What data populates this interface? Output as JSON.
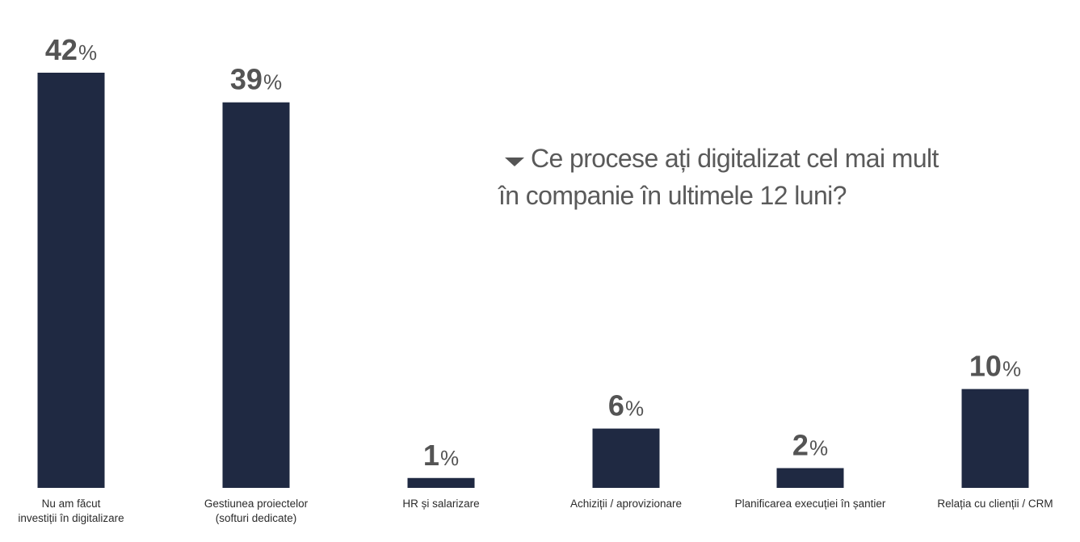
{
  "chart_data": {
    "type": "bar",
    "title_lines": [
      "Ce procese ați digitalizat cel mai mult",
      "în companie în ultimele 12 luni?"
    ],
    "categories": [
      [
        "Nu am făcut",
        "investiții în digitalizare"
      ],
      [
        "Gestiunea proiectelor",
        "(softuri dedicate)"
      ],
      [
        "HR și salarizare"
      ],
      [
        "Achiziții / aprovizionare"
      ],
      [
        "Planificarea execuției în șantier"
      ],
      [
        "Relația cu clienții / CRM"
      ]
    ],
    "values": [
      42,
      39,
      1,
      6,
      2,
      10
    ],
    "value_suffix": "%",
    "ylim": [
      0,
      42
    ],
    "grid": false,
    "colors": {
      "bar": "#1f2942",
      "value_text": "#545454",
      "label_text": "#2b2b2b",
      "title_text": "#5a5a5a",
      "marker": "#555555"
    },
    "title_marker_icon": "triangle-down-icon"
  }
}
